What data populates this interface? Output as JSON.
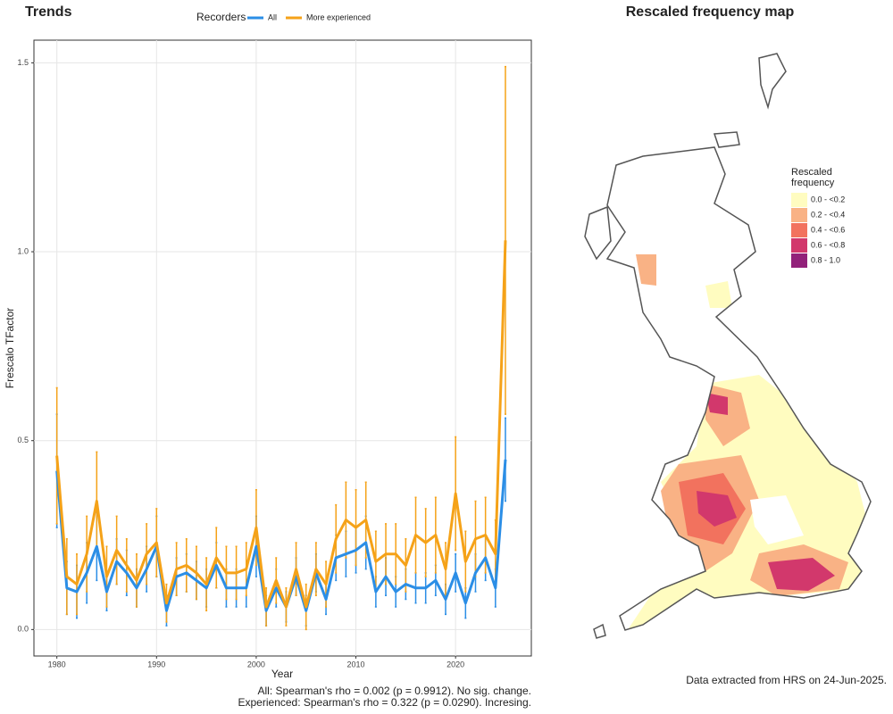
{
  "chart_data": [
    {
      "type": "line",
      "title": "Trends",
      "legend_title": "Recorders",
      "legend_position": "top",
      "x_label": "Year",
      "y_label": "Frescalo TFactor",
      "x": [
        1980,
        1981,
        1982,
        1983,
        1984,
        1985,
        1986,
        1987,
        1988,
        1989,
        1990,
        1991,
        1992,
        1993,
        1994,
        1995,
        1996,
        1997,
        1998,
        1999,
        2000,
        2001,
        2002,
        2003,
        2004,
        2005,
        2006,
        2007,
        2008,
        2009,
        2010,
        2011,
        2012,
        2013,
        2014,
        2015,
        2016,
        2017,
        2018,
        2019,
        2020,
        2021,
        2022,
        2023,
        2024,
        2025
      ],
      "series": [
        {
          "name": "All",
          "color": "#2b8ee6",
          "values": [
            0.42,
            0.11,
            0.1,
            0.15,
            0.22,
            0.1,
            0.18,
            0.15,
            0.11,
            0.16,
            0.22,
            0.05,
            0.14,
            0.15,
            0.13,
            0.11,
            0.17,
            0.11,
            0.11,
            0.11,
            0.22,
            0.05,
            0.11,
            0.06,
            0.14,
            0.05,
            0.15,
            0.08,
            0.19,
            0.2,
            0.21,
            0.23,
            0.1,
            0.14,
            0.1,
            0.12,
            0.11,
            0.11,
            0.13,
            0.08,
            0.15,
            0.07,
            0.15,
            0.19,
            0.11,
            0.45
          ],
          "errors": [
            0.15,
            0.07,
            0.07,
            0.08,
            0.09,
            0.05,
            0.06,
            0.06,
            0.05,
            0.06,
            0.08,
            0.04,
            0.05,
            0.05,
            0.05,
            0.05,
            0.06,
            0.05,
            0.05,
            0.05,
            0.08,
            0.04,
            0.05,
            0.04,
            0.05,
            0.04,
            0.05,
            0.04,
            0.06,
            0.06,
            0.06,
            0.07,
            0.04,
            0.05,
            0.04,
            0.04,
            0.04,
            0.04,
            0.04,
            0.04,
            0.05,
            0.04,
            0.05,
            0.06,
            0.05,
            0.11
          ]
        },
        {
          "name": "More experienced",
          "color": "#f5a218",
          "values": [
            0.46,
            0.14,
            0.12,
            0.2,
            0.34,
            0.14,
            0.21,
            0.17,
            0.13,
            0.2,
            0.23,
            0.07,
            0.16,
            0.17,
            0.15,
            0.12,
            0.19,
            0.15,
            0.15,
            0.16,
            0.27,
            0.06,
            0.13,
            0.06,
            0.16,
            0.06,
            0.16,
            0.12,
            0.24,
            0.29,
            0.27,
            0.29,
            0.18,
            0.2,
            0.2,
            0.17,
            0.25,
            0.23,
            0.25,
            0.16,
            0.36,
            0.18,
            0.24,
            0.25,
            0.2,
            1.03
          ],
          "errors": [
            0.18,
            0.1,
            0.08,
            0.1,
            0.13,
            0.08,
            0.09,
            0.07,
            0.07,
            0.08,
            0.09,
            0.05,
            0.07,
            0.07,
            0.07,
            0.07,
            0.08,
            0.07,
            0.07,
            0.07,
            0.1,
            0.05,
            0.06,
            0.05,
            0.07,
            0.06,
            0.07,
            0.06,
            0.09,
            0.1,
            0.1,
            0.1,
            0.08,
            0.08,
            0.08,
            0.07,
            0.1,
            0.09,
            0.1,
            0.07,
            0.15,
            0.08,
            0.1,
            0.1,
            0.09,
            0.46
          ]
        }
      ],
      "xlim": [
        1977.7,
        2027.6
      ],
      "ylim": [
        -0.07,
        1.56
      ],
      "xticks": [
        1980,
        1990,
        2000,
        2010,
        2020
      ],
      "yticks": [
        {
          "value": 0,
          "label": "0.0"
        },
        0.5,
        {
          "value": 1,
          "label": "1.0"
        },
        1.5
      ],
      "grid": true,
      "notes": [
        "All: Spearman's rho = 0.002 (p = 0.9912). No sig. change.",
        "Experienced: Spearman's rho = 0.322 (p = 0.0290). Incresing."
      ]
    },
    {
      "type": "map",
      "title": "Rescaled frequency map",
      "legend_title_lines": [
        "Rescaled",
        "frequency"
      ],
      "categories": [
        "0.0 - <0.2",
        "0.2 - <0.4",
        "0.4 - <0.6",
        "0.6 - <0.8",
        "0.8 - 1.0"
      ],
      "colors": [
        "#fffcc0",
        "#f9b285",
        "#f2725e",
        "#d2386c",
        "#92217a"
      ],
      "note": "Data extracted from HRS on 24-Jun-2025."
    }
  ]
}
